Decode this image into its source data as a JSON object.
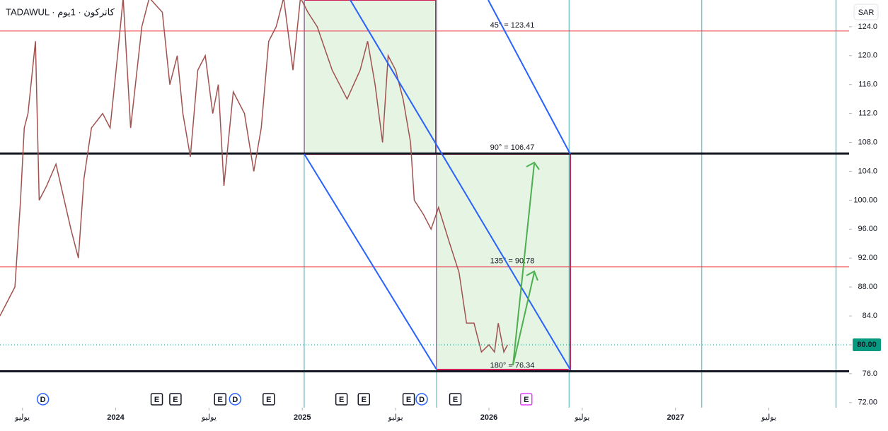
{
  "chart_data": {
    "type": "line",
    "title": "TADAWUL · كاتركون · 1يوم",
    "currency": "SAR",
    "current_price": {
      "value": 80,
      "label": "80.00"
    },
    "x": [
      2023.38,
      2023.46,
      2023.49,
      2023.51,
      2023.53,
      2023.57,
      2023.59,
      2023.63,
      2023.68,
      2023.76,
      2023.8,
      2023.83,
      2023.87,
      2023.93,
      2023.97,
      2024.01,
      2024.04,
      2024.08,
      2024.14,
      2024.18,
      2024.25,
      2024.29,
      2024.33,
      2024.36,
      2024.4,
      2024.44,
      2024.48,
      2024.52,
      2024.55,
      2024.58,
      2024.63,
      2024.69,
      2024.74,
      2024.78,
      2024.82,
      2024.86,
      2024.9,
      2024.95,
      2024.99,
      2025.03,
      2025.08,
      2025.16,
      2025.24,
      2025.31,
      2025.35,
      2025.39,
      2025.43,
      2025.46,
      2025.5,
      2025.54,
      2025.58,
      2025.6,
      2025.65,
      2025.69,
      2025.73,
      2025.79,
      2025.84,
      2025.88,
      2025.92,
      2025.96,
      2026.0,
      2026.03,
      2026.05,
      2026.08,
      2026.1
    ],
    "series": [
      {
        "name": "كاتركون",
        "color": "#a0524f",
        "values": [
          84,
          88,
          100,
          110,
          112,
          122,
          100,
          102,
          105,
          96,
          92,
          103,
          110,
          112,
          110,
          120,
          128,
          110,
          124,
          128,
          126,
          116,
          120,
          112,
          106,
          118,
          120,
          112,
          116,
          102,
          115,
          112,
          104,
          110,
          122,
          124,
          128,
          118,
          128,
          126,
          124,
          118,
          114,
          118,
          122,
          116,
          108,
          120,
          118,
          114,
          108,
          100,
          98,
          96,
          99,
          94,
          90,
          83,
          83,
          79,
          80,
          79,
          83,
          79,
          80
        ]
      }
    ],
    "levels": [
      {
        "label": "45° = 123.41",
        "value": 123.41,
        "color": "#f23645"
      },
      {
        "label": "90° = 106.47",
        "value": 106.47,
        "color": "#131722"
      },
      {
        "label": "135° = 90.78",
        "value": 90.78,
        "color": "#f23645"
      },
      {
        "label": "180° = 76.34",
        "value": 76.34,
        "color": "#131722"
      }
    ],
    "time_lines": [
      2025.01,
      2025.72,
      2026.43,
      2027.14,
      2027.86
    ],
    "events": [
      {
        "label": "D",
        "x": 2023.61
      },
      {
        "label": "E",
        "x": 2024.22
      },
      {
        "label": "E",
        "x": 2024.32
      },
      {
        "label": "E",
        "x": 2024.56
      },
      {
        "label": "D",
        "x": 2024.64
      },
      {
        "label": "E",
        "x": 2024.82
      },
      {
        "label": "E",
        "x": 2025.21
      },
      {
        "label": "E",
        "x": 2025.33
      },
      {
        "label": "E",
        "x": 2025.57
      },
      {
        "label": "D",
        "x": 2025.64
      },
      {
        "label": "E",
        "x": 2025.82
      },
      {
        "label": "E",
        "x": 2026.2
      }
    ],
    "xlim": [
      2023.38,
      2027.93
    ],
    "ylim": [
      71.3,
      127.7
    ],
    "xticks": [
      {
        "value": 2023.5,
        "label": "يوليو"
      },
      2024,
      {
        "value": 2024.5,
        "label": "يوليو"
      },
      2025,
      {
        "value": 2025.5,
        "label": "يوليو"
      },
      2026,
      {
        "value": 2026.5,
        "label": "يوليو"
      },
      2027,
      {
        "value": 2027.5,
        "label": "يوليو"
      }
    ],
    "yticks": [
      {
        "value": 72,
        "label": "72.00"
      },
      {
        "value": 76,
        "label": "76.0"
      },
      {
        "value": 80,
        "label": "80.0"
      },
      {
        "value": 84,
        "label": "84.0"
      },
      {
        "value": 88,
        "label": "88.00"
      },
      {
        "value": 92,
        "label": "92.00"
      },
      {
        "value": 96,
        "label": "96.00"
      },
      {
        "value": 100,
        "label": "100.00"
      },
      {
        "value": 104,
        "label": "104.0"
      },
      {
        "value": 108,
        "label": "108.0"
      },
      {
        "value": 112,
        "label": "112.0"
      },
      {
        "value": 116,
        "label": "116.0"
      },
      {
        "value": 120,
        "label": "120.0"
      },
      {
        "value": 124,
        "label": "124.0"
      }
    ]
  }
}
